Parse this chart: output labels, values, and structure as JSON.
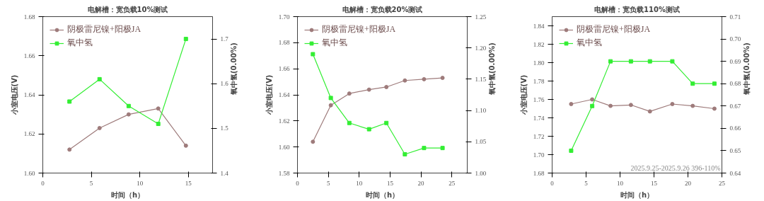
{
  "chart_data": [
    {
      "type": "line",
      "title": "电解槽：宽负载10%测试",
      "xlabel": "时间（h）",
      "ylabel": "小室电压(V)",
      "y2label": "氧中氢(0.00%)",
      "xlim": [
        0,
        17.5
      ],
      "xticks": [
        0,
        5,
        10,
        15
      ],
      "ylim": [
        1.6,
        1.68
      ],
      "yticks": [
        {
          "value": 1.6,
          "label": "1.60"
        },
        {
          "value": 1.62,
          "label": "1.62"
        },
        {
          "value": 1.64,
          "label": "1.64"
        },
        {
          "value": 1.66,
          "label": "1.66"
        },
        {
          "value": 1.68,
          "label": "1.68"
        }
      ],
      "y2lim": [
        1.4,
        1.75
      ],
      "y2ticks": [
        1.4,
        1.5,
        1.6,
        1.7
      ],
      "legend": "top left",
      "grid": false,
      "series": [
        {
          "name": "阴极雷尼镍+阳极JA",
          "color": "#9e7b7b",
          "marker": "circle",
          "x": [
            2.75,
            5.85,
            8.85,
            11.9,
            14.75
          ],
          "values": [
            1.612,
            1.623,
            1.63,
            1.633,
            1.614
          ]
        },
        {
          "name": "氧中氢",
          "color": "#33ee33",
          "marker": "square",
          "axis": "y2",
          "x": [
            2.75,
            5.85,
            8.85,
            11.9,
            14.75
          ],
          "values": [
            1.56,
            1.61,
            1.55,
            1.51,
            1.7
          ]
        }
      ]
    },
    {
      "type": "line",
      "title": "电解槽：宽负载20%测试",
      "xlabel": "时间（h）",
      "ylabel": "小室电压(V)",
      "y2label": "氧中氢(0.00%)",
      "xlim": [
        0,
        27.5
      ],
      "xticks": [
        0,
        5,
        10,
        15,
        20,
        25
      ],
      "ylim": [
        1.58,
        1.7
      ],
      "yticks": [
        {
          "value": 1.58,
          "label": "1.58"
        },
        {
          "value": 1.6,
          "label": "1.60"
        },
        {
          "value": 1.62,
          "label": "1.62"
        },
        {
          "value": 1.64,
          "label": "1.64"
        },
        {
          "value": 1.66,
          "label": "1.66"
        },
        {
          "value": 1.68,
          "label": "1.68"
        },
        {
          "value": 1.7,
          "label": "1.70"
        }
      ],
      "y2lim": [
        1.0,
        1.25
      ],
      "y2ticks": [
        {
          "value": 1.0,
          "label": "1.00"
        },
        {
          "value": 1.05,
          "label": "1.05"
        },
        {
          "value": 1.1,
          "label": "1.10"
        },
        {
          "value": 1.15,
          "label": "1.15"
        },
        {
          "value": 1.2,
          "label": "1.20"
        },
        {
          "value": 1.25,
          "label": "1.25"
        }
      ],
      "legend": "top left",
      "grid": false,
      "series": [
        {
          "name": "阴极雷尼镍+阳极JA",
          "color": "#9e7b7b",
          "marker": "circle",
          "x": [
            2.5,
            5.4,
            8.4,
            11.6,
            14.4,
            17.4,
            20.5,
            23.5
          ],
          "values": [
            1.604,
            1.632,
            1.641,
            1.644,
            1.646,
            1.651,
            1.652,
            1.653
          ]
        },
        {
          "name": "氧中氢",
          "color": "#33ee33",
          "marker": "square",
          "axis": "y2",
          "x": [
            2.5,
            5.4,
            8.4,
            11.6,
            14.4,
            17.4,
            20.5,
            23.5
          ],
          "values": [
            1.19,
            1.12,
            1.08,
            1.07,
            1.08,
            1.03,
            1.04,
            1.04
          ]
        }
      ]
    },
    {
      "type": "line",
      "title": "电解槽：宽负载110%测试",
      "xlabel": "时间（h）",
      "ylabel": "小室电压(V)",
      "y2label": "氧中氢(0.00%)",
      "xlim": [
        0,
        25
      ],
      "xticks": [
        0,
        5,
        10,
        15,
        20,
        25
      ],
      "ylim": [
        1.68,
        1.85
      ],
      "yticks": [
        {
          "value": 1.68,
          "label": "1.68"
        },
        {
          "value": 1.7,
          "label": "1.70"
        },
        {
          "value": 1.72,
          "label": "1.72"
        },
        {
          "value": 1.74,
          "label": "1.74"
        },
        {
          "value": 1.76,
          "label": "1.76"
        },
        {
          "value": 1.78,
          "label": "1.78"
        },
        {
          "value": 1.8,
          "label": "1.80"
        },
        {
          "value": 1.82,
          "label": "1.82"
        },
        {
          "value": 1.84,
          "label": "1.84"
        }
      ],
      "y2lim": [
        0.64,
        0.71
      ],
      "y2ticks": [
        0.64,
        0.65,
        0.66,
        0.67,
        0.68,
        0.69,
        {
          "value": 0.7,
          "label": "0.70"
        },
        0.71
      ],
      "legend": "top left",
      "grid": false,
      "annotations": [
        "2025.9.25-2025.9.26 396-110%"
      ],
      "series": [
        {
          "name": "阴极雷尼镍+阳极JA",
          "color": "#9e7b7b",
          "marker": "circle",
          "x": [
            2.8,
            5.9,
            8.6,
            11.6,
            14.4,
            17.7,
            20.7,
            23.9
          ],
          "values": [
            1.755,
            1.76,
            1.753,
            1.754,
            1.747,
            1.755,
            1.753,
            1.75
          ]
        },
        {
          "name": "氧中氢",
          "color": "#33ee33",
          "marker": "square",
          "axis": "y2",
          "x": [
            2.8,
            5.9,
            8.6,
            11.6,
            14.4,
            17.7,
            20.7,
            23.9
          ],
          "values": [
            0.65,
            0.67,
            0.69,
            0.69,
            0.69,
            0.69,
            0.68,
            0.68
          ]
        }
      ]
    }
  ]
}
